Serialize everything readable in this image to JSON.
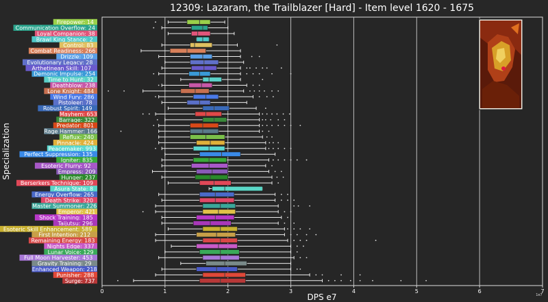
{
  "chart_data": {
    "type": "boxplot",
    "orientation": "horizontal",
    "title": "12309: Lazaram, the Trailblazer [Hard] - Item level 1620 - 1675",
    "xlabel": "DPS e7",
    "ylabel": "Specialization",
    "x_scale_note": "1e7",
    "xlim": [
      0,
      7
    ],
    "x_ticks": [
      "0",
      "1",
      "2",
      "3",
      "4",
      "5",
      "6",
      "7"
    ],
    "grid": "vertical",
    "has_portrait": true,
    "categories": [
      {
        "label": "Firepower: 14",
        "color": "#9ad04a",
        "q1": 1.35,
        "med": 1.55,
        "q3": 1.72,
        "wlo": 1.05,
        "whi": 1.95,
        "outliers": [
          0.85
        ]
      },
      {
        "label": "Communication Overflow: 24",
        "color": "#2aa38c",
        "q1": 1.42,
        "med": 1.6,
        "q3": 1.68,
        "wlo": 0.95,
        "whi": 2.0,
        "outliers": [
          0.82
        ]
      },
      {
        "label": "Loyal Companion: 38",
        "color": "#e0557a",
        "q1": 1.42,
        "med": 1.52,
        "q3": 1.72,
        "wlo": 1.05,
        "whi": 2.1,
        "outliers": []
      },
      {
        "label": "Brawl King Stance: 2",
        "color": "#50c8c8",
        "q1": 1.5,
        "med": 1.6,
        "q3": 1.7,
        "wlo": 1.5,
        "whi": 1.7,
        "outliers": []
      },
      {
        "label": "Control: 83",
        "color": "#e0c060",
        "q1": 1.4,
        "med": 1.47,
        "q3": 1.75,
        "wlo": 0.95,
        "whi": 2.15,
        "outliers": [
          2.78
        ]
      },
      {
        "label": "Combat Readiness: 266",
        "color": "#d8805a",
        "q1": 1.08,
        "med": 1.35,
        "q3": 1.65,
        "wlo": 0.62,
        "whi": 2.2,
        "outliers": []
      },
      {
        "label": "Drizzle: 109",
        "color": "#5aa0e8",
        "q1": 1.4,
        "med": 1.6,
        "q3": 1.75,
        "wlo": 0.9,
        "whi": 2.2,
        "outliers": [
          2.38,
          2.5
        ]
      },
      {
        "label": "Evolutionary Legacy: 28",
        "color": "#6070c8",
        "q1": 1.4,
        "med": 1.62,
        "q3": 1.85,
        "wlo": 1.0,
        "whi": 2.25,
        "outliers": []
      },
      {
        "label": "Arthetinean Skill: 107",
        "color": "#6a5acd",
        "q1": 1.42,
        "med": 1.62,
        "q3": 1.82,
        "wlo": 0.95,
        "whi": 2.2,
        "outliers": [
          2.3,
          2.35,
          2.45,
          2.55,
          2.62,
          2.85
        ]
      },
      {
        "label": "Demonic Impulse: 254",
        "color": "#3a9ad8",
        "q1": 1.38,
        "med": 1.55,
        "q3": 1.72,
        "wlo": 0.9,
        "whi": 2.2,
        "outliers": [
          0.82,
          2.3,
          2.4,
          2.5,
          2.7,
          3.0
        ]
      },
      {
        "label": "Time to Hunt: 32",
        "color": "#5ad0c8",
        "q1": 1.6,
        "med": 1.7,
        "q3": 1.9,
        "wlo": 1.25,
        "whi": 2.2,
        "outliers": [
          2.55
        ]
      },
      {
        "label": "Deathblow: 238",
        "color": "#c858a8",
        "q1": 1.38,
        "med": 1.58,
        "q3": 1.75,
        "wlo": 0.95,
        "whi": 2.3,
        "outliers": [
          0.9,
          2.4,
          2.5
        ]
      },
      {
        "label": "Lone Knight: 484",
        "color": "#c87050",
        "q1": 1.25,
        "med": 1.48,
        "q3": 1.7,
        "wlo": 0.65,
        "whi": 2.25,
        "outliers": [
          0.1,
          0.35,
          2.35,
          2.42,
          2.5,
          2.58,
          2.7,
          2.8
        ]
      },
      {
        "label": "Wind Fury: 286",
        "color": "#4a7ae8",
        "q1": 1.45,
        "med": 1.65,
        "q3": 1.85,
        "wlo": 0.9,
        "whi": 2.4,
        "outliers": [
          0.85,
          2.5,
          2.62,
          2.72
        ]
      },
      {
        "label": "Pistoleer: 78",
        "color": "#5a70c8",
        "q1": 1.35,
        "med": 1.55,
        "q3": 1.72,
        "wlo": 0.95,
        "whi": 2.3,
        "outliers": []
      },
      {
        "label": "Robust Spirit: 149",
        "color": "#3a6ab8",
        "q1": 1.6,
        "med": 1.78,
        "q3": 2.02,
        "wlo": 1.05,
        "whi": 2.45,
        "outliers": [
          2.6
        ]
      },
      {
        "label": "Mayhem: 653",
        "color": "#e04848",
        "q1": 1.48,
        "med": 1.65,
        "q3": 1.9,
        "wlo": 0.85,
        "whi": 2.5,
        "outliers": [
          0.65,
          0.75,
          2.55,
          2.62,
          2.7,
          2.78,
          2.88,
          2.98
        ]
      },
      {
        "label": "Barrage: 322",
        "color": "#3a8a3a",
        "q1": 1.6,
        "med": 1.78,
        "q3": 1.98,
        "wlo": 1.0,
        "whi": 2.5,
        "outliers": [
          0.88,
          2.55,
          2.6,
          2.68,
          2.8,
          2.9
        ]
      },
      {
        "label": "Predator: 801",
        "color": "#d84818",
        "q1": 1.4,
        "med": 1.6,
        "q3": 1.85,
        "wlo": 0.9,
        "whi": 2.5,
        "outliers": [
          0.82,
          2.55,
          2.62,
          2.7,
          2.8,
          2.9,
          3.0,
          3.15
        ]
      },
      {
        "label": "Rage Hammer: 166",
        "color": "#5a7a8a",
        "q1": 1.4,
        "med": 1.6,
        "q3": 1.85,
        "wlo": 0.9,
        "whi": 2.5,
        "outliers": [
          0.3,
          2.55,
          2.65
        ]
      },
      {
        "label": "Reflux: 240",
        "color": "#7ac04a",
        "q1": 1.4,
        "med": 1.65,
        "q3": 1.95,
        "wlo": 0.9,
        "whi": 2.55,
        "outliers": [
          2.62,
          2.7
        ]
      },
      {
        "label": "Pinnacle: 424",
        "color": "#e0b03a",
        "q1": 1.5,
        "med": 1.72,
        "q3": 1.95,
        "wlo": 0.9,
        "whi": 2.6,
        "outliers": [
          2.66,
          2.72,
          2.8
        ]
      },
      {
        "label": "Peacemaker: 993",
        "color": "#5ad8d0",
        "q1": 1.45,
        "med": 1.7,
        "q3": 1.95,
        "wlo": 0.95,
        "whi": 2.6,
        "outliers": [
          0.85,
          2.65,
          2.72,
          2.8,
          2.9,
          3.0
        ]
      },
      {
        "label": "Perfect Suppression: 135",
        "color": "#3a8ae8",
        "q1": 1.55,
        "med": 1.9,
        "q3": 2.2,
        "wlo": 1.0,
        "whi": 2.75,
        "outliers": []
      },
      {
        "label": "Igniter: 835",
        "color": "#3aaa3a",
        "q1": 1.45,
        "med": 1.7,
        "q3": 1.98,
        "wlo": 0.95,
        "whi": 2.65,
        "outliers": [
          2.72,
          2.8,
          2.9,
          3.0,
          3.1,
          3.25
        ]
      },
      {
        "label": "Esoteric Flurry: 92",
        "color": "#a858c8",
        "q1": 1.42,
        "med": 1.7,
        "q3": 2.0,
        "wlo": 0.95,
        "whi": 2.6,
        "outliers": [
          2.7
        ]
      },
      {
        "label": "Empress: 209",
        "color": "#8a5ab8",
        "q1": 1.5,
        "med": 1.75,
        "q3": 2.0,
        "wlo": 0.8,
        "whi": 2.65,
        "outliers": [
          2.75,
          2.85
        ]
      },
      {
        "label": "Hunger: 237",
        "color": "#2a8a2a",
        "q1": 1.48,
        "med": 1.72,
        "q3": 2.0,
        "wlo": 0.95,
        "whi": 2.7,
        "outliers": [
          2.78,
          2.88
        ]
      },
      {
        "label": "Berserkers Technique: 109",
        "color": "#e04858",
        "q1": 1.55,
        "med": 1.78,
        "q3": 2.05,
        "wlo": 1.05,
        "whi": 2.7,
        "outliers": [
          2.8
        ]
      },
      {
        "label": "Asura State: 8",
        "color": "#5ad8c8",
        "q1": 1.75,
        "med": 1.95,
        "q3": 2.55,
        "wlo": 1.7,
        "whi": 2.55,
        "outliers": []
      },
      {
        "label": "Energy Overflow: 265",
        "color": "#4a6ac8",
        "q1": 1.55,
        "med": 1.8,
        "q3": 2.1,
        "wlo": 0.9,
        "whi": 2.75,
        "outliers": [
          2.85,
          2.95
        ]
      },
      {
        "label": "Death Strike: 320",
        "color": "#e04868",
        "q1": 1.55,
        "med": 1.8,
        "q3": 2.1,
        "wlo": 0.95,
        "whi": 2.75,
        "outliers": [
          2.85,
          2.95,
          3.05
        ]
      },
      {
        "label": "Master Summoner: 226",
        "color": "#3aa89a",
        "q1": 1.6,
        "med": 1.88,
        "q3": 2.12,
        "wlo": 0.85,
        "whi": 2.8,
        "outliers": [
          3.05,
          3.12,
          3.3
        ]
      },
      {
        "label": "Emperor: 421",
        "color": "#e0c048",
        "q1": 1.6,
        "med": 1.85,
        "q3": 2.12,
        "wlo": 0.85,
        "whi": 2.8,
        "outliers": [
          0.65,
          2.9,
          3.0
        ]
      },
      {
        "label": "Shock Training: 185",
        "color": "#b838c8",
        "q1": 1.5,
        "med": 1.8,
        "q3": 2.1,
        "wlo": 0.95,
        "whi": 2.85,
        "outliers": [
          2.95
        ]
      },
      {
        "label": "Taijutsu: 296",
        "color": "#a838b8",
        "q1": 1.45,
        "med": 1.72,
        "q3": 2.05,
        "wlo": 0.95,
        "whi": 2.8,
        "outliers": [
          2.9,
          3.05
        ]
      },
      {
        "label": "Esoteric Skill Enhancement: 589",
        "color": "#c8b030",
        "q1": 1.6,
        "med": 1.88,
        "q3": 2.15,
        "wlo": 1.05,
        "whi": 2.9,
        "outliers": [
          2.95,
          3.05,
          3.15,
          3.3
        ]
      },
      {
        "label": "First Intention: 212",
        "color": "#c8a048",
        "q1": 1.5,
        "med": 1.82,
        "q3": 2.12,
        "wlo": 0.85,
        "whi": 2.9,
        "outliers": [
          3.0,
          3.1,
          3.25,
          3.4
        ]
      },
      {
        "label": "Remaining Energy: 183",
        "color": "#d84848",
        "q1": 1.6,
        "med": 1.88,
        "q3": 2.15,
        "wlo": 0.85,
        "whi": 2.95,
        "outliers": [
          3.05,
          3.15,
          3.25,
          4.35
        ]
      },
      {
        "label": "Nights Edge: 337",
        "color": "#c85ac8",
        "q1": 1.5,
        "med": 1.85,
        "q3": 2.15,
        "wlo": 1.1,
        "whi": 3.0,
        "outliers": [
          3.1,
          3.2
        ]
      },
      {
        "label": "Lunar Voice: 129",
        "color": "#3aaa5a",
        "q1": 1.55,
        "med": 1.88,
        "q3": 2.18,
        "wlo": 1.0,
        "whi": 3.0,
        "outliers": [
          3.1
        ]
      },
      {
        "label": "Full Moon Harvester: 453",
        "color": "#a878d8",
        "q1": 1.6,
        "med": 1.88,
        "q3": 2.18,
        "wlo": 0.9,
        "whi": 3.05,
        "outliers": [
          3.15,
          3.25
        ]
      },
      {
        "label": "Gravity Training: 29",
        "color": "#7a8a8a",
        "q1": 1.65,
        "med": 1.95,
        "q3": 2.3,
        "wlo": 1.25,
        "whi": 3.0,
        "outliers": []
      },
      {
        "label": "Enhanced Weapon: 218",
        "color": "#4a5ac8",
        "q1": 1.5,
        "med": 1.82,
        "q3": 2.15,
        "wlo": 0.95,
        "whi": 3.0,
        "outliers": [
          3.1,
          3.15
        ]
      },
      {
        "label": "Punisher: 288",
        "color": "#e04838",
        "q1": 1.6,
        "med": 1.95,
        "q3": 2.28,
        "wlo": 0.85,
        "whi": 3.3,
        "outliers": [
          3.4,
          3.5,
          3.8,
          4.1
        ]
      },
      {
        "label": "Surge: 737",
        "color": "#b83838",
        "q1": 1.55,
        "med": 1.88,
        "q3": 2.28,
        "wlo": 0.5,
        "whi": 3.5,
        "outliers": [
          0.25,
          3.6,
          3.7,
          3.8,
          3.95,
          4.1,
          4.3,
          4.75,
          5.15
        ]
      }
    ]
  }
}
